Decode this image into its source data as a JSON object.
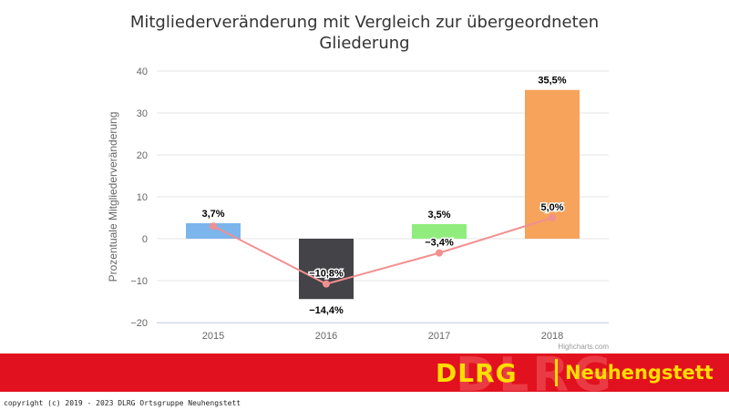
{
  "chart_data": {
    "type": "bar",
    "title": "Mitgliederveränderung mit Vergleich zur übergeordneten Gliederung",
    "title_lines": [
      "Mitgliederveränderung mit Vergleich zur übergeordneten",
      "Gliederung"
    ],
    "ylabel": "Prozentuale Mitgliederveränderung",
    "xlabel": "",
    "categories": [
      "2015",
      "2016",
      "2017",
      "2018"
    ],
    "ylim": [
      -20,
      40
    ],
    "yticks": [
      -20,
      -10,
      0,
      10,
      20,
      30,
      40
    ],
    "grid": true,
    "series": [
      {
        "type": "bar",
        "values": [
          3.7,
          -14.4,
          3.5,
          35.5
        ],
        "labels": [
          "3,7%",
          "−14,4%",
          "3,5%",
          "35,5%"
        ],
        "colors": [
          "#7cb5ec",
          "#434348",
          "#90ed7d",
          "#f7a35c"
        ]
      },
      {
        "type": "line",
        "values": [
          3.0,
          -10.8,
          -3.4,
          5.0
        ],
        "labels": [
          "",
          "−10,8%",
          "−3,4%",
          "5,0%"
        ],
        "color": "#f28f8f"
      }
    ],
    "credits": "Highcharts.com"
  },
  "banner": {
    "logo": "DLRG",
    "location": "Neuhengstett",
    "ghost": "DLRG"
  },
  "footer": {
    "copyright": "copyright (c) 2019 - 2023 DLRG Ortsgruppe Neuhengstett"
  }
}
